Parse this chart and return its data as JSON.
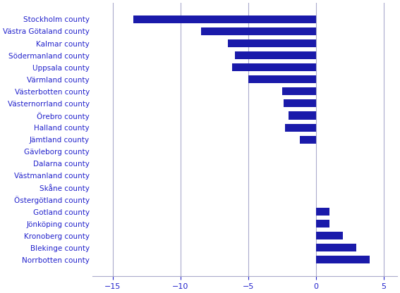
{
  "categories": [
    "Stockholm county",
    "Västra Götaland county",
    "Kalmar county",
    "Södermanland county",
    "Uppsala county",
    "Värmland county",
    "Västerbotten county",
    "Västernorrland county",
    "Örebro county",
    "Halland county",
    "Jämtland county",
    "Gävleborg county",
    "Dalarna county",
    "Västmanland county",
    "Skåne county",
    "Östergötland county",
    "Gotland county",
    "Jönköping county",
    "Kronoberg county",
    "Blekinge county",
    "Norrbotten county"
  ],
  "values": [
    -13.5,
    -8.5,
    -6.5,
    -6.0,
    -6.2,
    -5.0,
    -2.5,
    -2.4,
    -2.0,
    -2.3,
    -1.2,
    0.0,
    0.0,
    0.0,
    0.0,
    0.0,
    1.0,
    1.0,
    2.0,
    3.0,
    4.0
  ],
  "bar_color": "#1a1aaa",
  "background_color": "#ffffff",
  "xlim": [
    -16.5,
    6.0
  ],
  "xticks": [
    -15,
    -10,
    -5,
    0,
    5
  ],
  "text_color": "#2222cc",
  "label_fontsize": 7.5,
  "tick_fontsize": 8,
  "grid_color": "#aaaacc",
  "bar_height": 0.65
}
